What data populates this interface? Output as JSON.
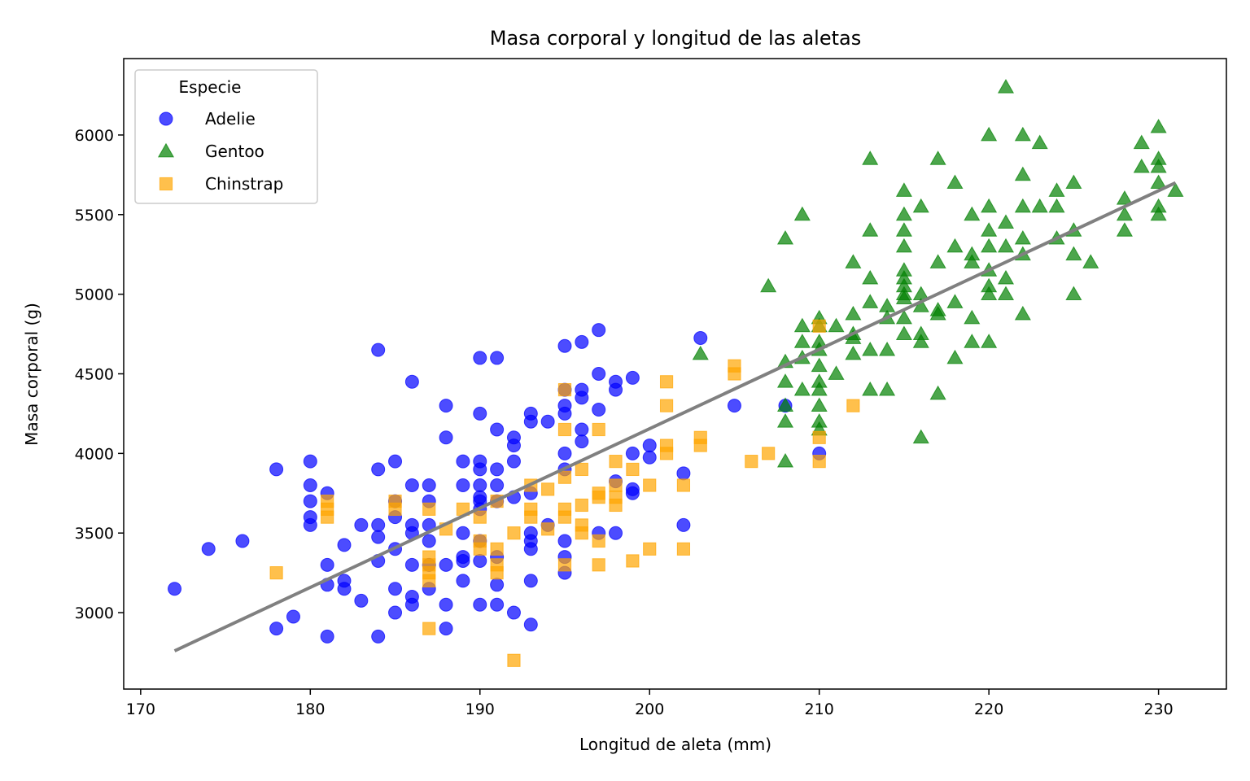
{
  "chart_data": {
    "type": "scatter",
    "title": "Masa corporal y longitud de las aletas",
    "xlabel": "Longitud de aleta (mm)",
    "ylabel": "Masa corporal (g)",
    "xlim": [
      169,
      234
    ],
    "ylim": [
      2520,
      6480
    ],
    "xticks": [
      170,
      180,
      190,
      200,
      210,
      220,
      230
    ],
    "yticks": [
      3000,
      3500,
      4000,
      4500,
      5000,
      5500,
      6000
    ],
    "grid": false,
    "legend": {
      "title": "Especie",
      "placement": "top-left"
    },
    "series": [
      {
        "name": "Adelie",
        "marker": "circle",
        "color": "#0000ff",
        "points": [
          [
            172,
            3150
          ],
          [
            174,
            3400
          ],
          [
            176,
            3450
          ],
          [
            178,
            3900
          ],
          [
            178,
            2900
          ],
          [
            179,
            2975
          ],
          [
            180,
            3950
          ],
          [
            180,
            3800
          ],
          [
            180,
            3700
          ],
          [
            180,
            3600
          ],
          [
            180,
            3550
          ],
          [
            181,
            3750
          ],
          [
            181,
            3300
          ],
          [
            181,
            3175
          ],
          [
            181,
            2850
          ],
          [
            182,
            3200
          ],
          [
            182,
            3150
          ],
          [
            182,
            3425
          ],
          [
            183,
            3550
          ],
          [
            183,
            3075
          ],
          [
            184,
            4650
          ],
          [
            184,
            3900
          ],
          [
            184,
            3550
          ],
          [
            184,
            3475
          ],
          [
            184,
            3325
          ],
          [
            184,
            2850
          ],
          [
            185,
            3950
          ],
          [
            185,
            3700
          ],
          [
            185,
            3600
          ],
          [
            185,
            3400
          ],
          [
            185,
            3150
          ],
          [
            185,
            3000
          ],
          [
            186,
            4450
          ],
          [
            186,
            3800
          ],
          [
            186,
            3550
          ],
          [
            186,
            3500
          ],
          [
            186,
            3300
          ],
          [
            186,
            3100
          ],
          [
            186,
            3050
          ],
          [
            187,
            3800
          ],
          [
            187,
            3700
          ],
          [
            187,
            3550
          ],
          [
            187,
            3450
          ],
          [
            187,
            3300
          ],
          [
            187,
            3150
          ],
          [
            188,
            4300
          ],
          [
            188,
            4100
          ],
          [
            188,
            3300
          ],
          [
            188,
            3050
          ],
          [
            188,
            2900
          ],
          [
            189,
            3950
          ],
          [
            189,
            3800
          ],
          [
            189,
            3500
          ],
          [
            189,
            3350
          ],
          [
            189,
            3325
          ],
          [
            189,
            3200
          ],
          [
            190,
            4600
          ],
          [
            190,
            4250
          ],
          [
            190,
            3950
          ],
          [
            190,
            3900
          ],
          [
            190,
            3800
          ],
          [
            190,
            3725
          ],
          [
            190,
            3700
          ],
          [
            190,
            3650
          ],
          [
            190,
            3450
          ],
          [
            190,
            3325
          ],
          [
            190,
            3050
          ],
          [
            191,
            4600
          ],
          [
            191,
            4150
          ],
          [
            191,
            3900
          ],
          [
            191,
            3800
          ],
          [
            191,
            3700
          ],
          [
            191,
            3350
          ],
          [
            191,
            3175
          ],
          [
            191,
            3050
          ],
          [
            192,
            4100
          ],
          [
            192,
            4050
          ],
          [
            192,
            3950
          ],
          [
            192,
            3725
          ],
          [
            192,
            3000
          ],
          [
            193,
            4250
          ],
          [
            193,
            4200
          ],
          [
            193,
            3750
          ],
          [
            193,
            3500
          ],
          [
            193,
            3450
          ],
          [
            193,
            3400
          ],
          [
            193,
            3200
          ],
          [
            193,
            2925
          ],
          [
            194,
            4200
          ],
          [
            194,
            3550
          ],
          [
            195,
            4675
          ],
          [
            195,
            4400
          ],
          [
            195,
            4300
          ],
          [
            195,
            4250
          ],
          [
            195,
            4000
          ],
          [
            195,
            3900
          ],
          [
            195,
            3450
          ],
          [
            195,
            3350
          ],
          [
            195,
            3250
          ],
          [
            196,
            4700
          ],
          [
            196,
            4400
          ],
          [
            196,
            4350
          ],
          [
            196,
            4150
          ],
          [
            196,
            4075
          ],
          [
            197,
            4775
          ],
          [
            197,
            4500
          ],
          [
            197,
            4275
          ],
          [
            197,
            3500
          ],
          [
            198,
            4450
          ],
          [
            198,
            4400
          ],
          [
            198,
            3825
          ],
          [
            198,
            3500
          ],
          [
            199,
            4475
          ],
          [
            199,
            4000
          ],
          [
            199,
            3775
          ],
          [
            199,
            3750
          ],
          [
            200,
            4050
          ],
          [
            200,
            3975
          ],
          [
            202,
            3875
          ],
          [
            202,
            3550
          ],
          [
            203,
            4725
          ],
          [
            205,
            4300
          ],
          [
            208,
            4300
          ],
          [
            210,
            4000
          ]
        ]
      },
      {
        "name": "Gentoo",
        "marker": "triangle",
        "color": "#008000",
        "points": [
          [
            203,
            4625
          ],
          [
            207,
            5050
          ],
          [
            208,
            5350
          ],
          [
            208,
            4575
          ],
          [
            208,
            4450
          ],
          [
            208,
            4300
          ],
          [
            208,
            4200
          ],
          [
            208,
            3950
          ],
          [
            209,
            5500
          ],
          [
            209,
            4800
          ],
          [
            209,
            4700
          ],
          [
            209,
            4600
          ],
          [
            209,
            4400
          ],
          [
            210,
            4850
          ],
          [
            210,
            4800
          ],
          [
            210,
            4700
          ],
          [
            210,
            4650
          ],
          [
            210,
            4550
          ],
          [
            210,
            4450
          ],
          [
            210,
            4400
          ],
          [
            210,
            4300
          ],
          [
            210,
            4200
          ],
          [
            210,
            4150
          ],
          [
            211,
            4800
          ],
          [
            211,
            4500
          ],
          [
            212,
            5200
          ],
          [
            212,
            4875
          ],
          [
            212,
            4750
          ],
          [
            212,
            4725
          ],
          [
            212,
            4625
          ],
          [
            213,
            5850
          ],
          [
            213,
            5400
          ],
          [
            213,
            5100
          ],
          [
            213,
            4950
          ],
          [
            213,
            4650
          ],
          [
            213,
            4400
          ],
          [
            214,
            4925
          ],
          [
            214,
            4850
          ],
          [
            214,
            4650
          ],
          [
            214,
            4400
          ],
          [
            215,
            5650
          ],
          [
            215,
            5500
          ],
          [
            215,
            5400
          ],
          [
            215,
            5300
          ],
          [
            215,
            5150
          ],
          [
            215,
            5100
          ],
          [
            215,
            5050
          ],
          [
            215,
            5000
          ],
          [
            215,
            4975
          ],
          [
            215,
            4850
          ],
          [
            215,
            4750
          ],
          [
            216,
            5550
          ],
          [
            216,
            5000
          ],
          [
            216,
            4925
          ],
          [
            216,
            4750
          ],
          [
            216,
            4700
          ],
          [
            216,
            4100
          ],
          [
            217,
            5850
          ],
          [
            217,
            5200
          ],
          [
            217,
            4900
          ],
          [
            217,
            4875
          ],
          [
            217,
            4375
          ],
          [
            218,
            5700
          ],
          [
            218,
            5300
          ],
          [
            218,
            4950
          ],
          [
            218,
            4600
          ],
          [
            219,
            5500
          ],
          [
            219,
            5250
          ],
          [
            219,
            5200
          ],
          [
            219,
            4850
          ],
          [
            219,
            4700
          ],
          [
            220,
            6000
          ],
          [
            220,
            5550
          ],
          [
            220,
            5400
          ],
          [
            220,
            5300
          ],
          [
            220,
            5150
          ],
          [
            220,
            5050
          ],
          [
            220,
            5000
          ],
          [
            220,
            4700
          ],
          [
            221,
            6300
          ],
          [
            221,
            5450
          ],
          [
            221,
            5300
          ],
          [
            221,
            5100
          ],
          [
            221,
            5000
          ],
          [
            222,
            6000
          ],
          [
            222,
            5750
          ],
          [
            222,
            5550
          ],
          [
            222,
            5350
          ],
          [
            222,
            5250
          ],
          [
            222,
            4875
          ],
          [
            223,
            5950
          ],
          [
            223,
            5550
          ],
          [
            224,
            5650
          ],
          [
            224,
            5550
          ],
          [
            224,
            5350
          ],
          [
            225,
            5700
          ],
          [
            225,
            5400
          ],
          [
            225,
            5250
          ],
          [
            225,
            5000
          ],
          [
            226,
            5200
          ],
          [
            228,
            5600
          ],
          [
            228,
            5500
          ],
          [
            228,
            5400
          ],
          [
            229,
            5950
          ],
          [
            229,
            5800
          ],
          [
            230,
            6050
          ],
          [
            230,
            5850
          ],
          [
            230,
            5800
          ],
          [
            230,
            5700
          ],
          [
            230,
            5550
          ],
          [
            230,
            5500
          ],
          [
            231,
            5650
          ]
        ]
      },
      {
        "name": "Chinstrap",
        "marker": "square",
        "color": "#ffa500",
        "points": [
          [
            178,
            3250
          ],
          [
            181,
            3700
          ],
          [
            181,
            3650
          ],
          [
            181,
            3600
          ],
          [
            185,
            3700
          ],
          [
            185,
            3650
          ],
          [
            187,
            3650
          ],
          [
            187,
            3350
          ],
          [
            187,
            3300
          ],
          [
            187,
            3250
          ],
          [
            187,
            3200
          ],
          [
            187,
            2900
          ],
          [
            188,
            3525
          ],
          [
            189,
            3650
          ],
          [
            190,
            3600
          ],
          [
            190,
            3450
          ],
          [
            190,
            3400
          ],
          [
            191,
            3700
          ],
          [
            191,
            3400
          ],
          [
            191,
            3300
          ],
          [
            191,
            3250
          ],
          [
            192,
            3500
          ],
          [
            192,
            2700
          ],
          [
            193,
            3800
          ],
          [
            193,
            3650
          ],
          [
            193,
            3600
          ],
          [
            194,
            3775
          ],
          [
            194,
            3525
          ],
          [
            195,
            4400
          ],
          [
            195,
            4150
          ],
          [
            195,
            3850
          ],
          [
            195,
            3650
          ],
          [
            195,
            3600
          ],
          [
            195,
            3300
          ],
          [
            196,
            3900
          ],
          [
            196,
            3675
          ],
          [
            196,
            3550
          ],
          [
            196,
            3500
          ],
          [
            197,
            4150
          ],
          [
            197,
            3750
          ],
          [
            197,
            3725
          ],
          [
            197,
            3450
          ],
          [
            197,
            3300
          ],
          [
            198,
            3950
          ],
          [
            198,
            3800
          ],
          [
            198,
            3725
          ],
          [
            198,
            3675
          ],
          [
            199,
            3900
          ],
          [
            199,
            3325
          ],
          [
            200,
            3800
          ],
          [
            200,
            3400
          ],
          [
            201,
            4450
          ],
          [
            201,
            4300
          ],
          [
            201,
            4050
          ],
          [
            201,
            4000
          ],
          [
            202,
            3800
          ],
          [
            202,
            3400
          ],
          [
            203,
            4100
          ],
          [
            203,
            4050
          ],
          [
            205,
            4550
          ],
          [
            205,
            4500
          ],
          [
            206,
            3950
          ],
          [
            207,
            4000
          ],
          [
            210,
            4800
          ],
          [
            210,
            4100
          ],
          [
            210,
            3950
          ],
          [
            212,
            4300
          ]
        ]
      }
    ],
    "trendline": {
      "color": "#808080",
      "points": [
        [
          172,
          2760
        ],
        [
          231,
          5700
        ]
      ]
    }
  }
}
